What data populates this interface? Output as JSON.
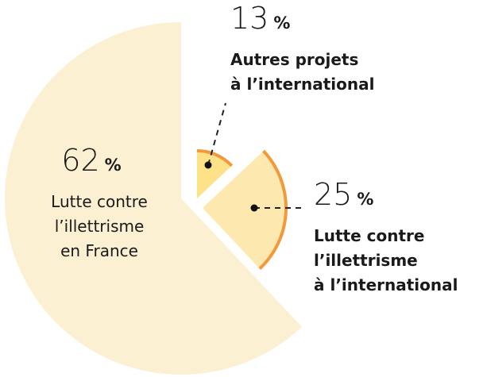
{
  "chart_data": {
    "type": "pie",
    "categories": [
      [
        "Autres projets",
        "à l’international"
      ],
      [
        "Lutte contre",
        "l’illettrisme",
        "à l’international"
      ],
      [
        "Lutte contre",
        "l’illettrisme",
        "en France"
      ]
    ],
    "values": [
      13,
      25,
      62
    ],
    "unit": "%",
    "colors": [
      "#fde28a",
      "#fde9b0",
      "#fcf0d2"
    ],
    "edge_color": "#f29a3b"
  }
}
